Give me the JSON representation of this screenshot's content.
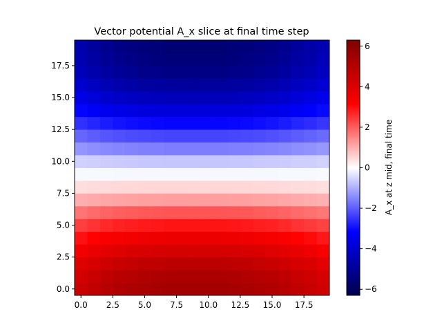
{
  "chart_data": {
    "type": "heatmap",
    "title": "Vector potential A_x slice at final time step",
    "xlabel": "",
    "ylabel": "",
    "colorbar_label": "A_x at z mid, final time",
    "colormap": "seismic",
    "origin": "lower",
    "nx": 20,
    "ny": 20,
    "xlim": [
      -0.5,
      19.5
    ],
    "ylim": [
      -0.5,
      19.5
    ],
    "x_ticks": [
      0,
      2.5,
      5,
      7.5,
      10,
      12.5,
      15,
      17.5
    ],
    "x_tick_labels": [
      "0.0",
      "2.5",
      "5.0",
      "7.5",
      "10.0",
      "12.5",
      "15.0",
      "17.5"
    ],
    "y_ticks": [
      0,
      2.5,
      5,
      7.5,
      10,
      12.5,
      15,
      17.5
    ],
    "y_tick_labels": [
      "0.0",
      "2.5",
      "5.0",
      "7.5",
      "10.0",
      "12.5",
      "15.0",
      "17.5"
    ],
    "color_range": [
      -6.3,
      6.3
    ],
    "colorbar_ticks": [
      -6,
      -4,
      -2,
      0,
      2,
      4,
      6
    ],
    "colorbar_tick_labels": [
      "−6",
      "−4",
      "−2",
      "0",
      "2",
      "4",
      "6"
    ],
    "row_profile": [
      5.4,
      5.2,
      4.8,
      4.2,
      3.6,
      2.9,
      2.1,
      1.2,
      0.5,
      -0.1,
      -0.7,
      -1.6,
      -2.3,
      -3.1,
      -3.8,
      -4.4,
      -4.9,
      -5.3,
      -5.5,
      -5.6
    ],
    "col_profile": [
      0.82,
      0.87,
      0.91,
      0.94,
      0.96,
      0.98,
      0.99,
      1.0,
      1.0,
      1.0,
      1.0,
      1.0,
      0.99,
      0.98,
      0.96,
      0.94,
      0.91,
      0.87,
      0.84,
      0.8
    ]
  },
  "colors": {
    "cmap_stops": [
      "#00004c",
      "#0000ff",
      "#ffffff",
      "#ff0000",
      "#800000"
    ]
  }
}
